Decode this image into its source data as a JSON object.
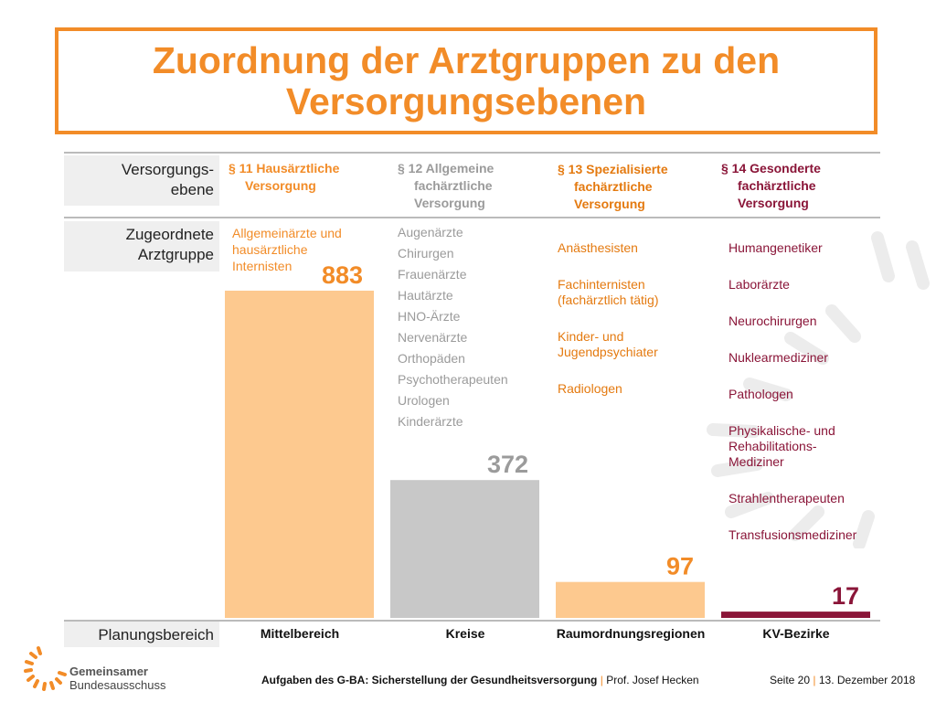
{
  "title": "Zuordnung der Arztgruppen zu den Versorgungsebenen",
  "row_labels": {
    "versorgungsebene": "Versorgungs-\nebene",
    "arztgruppe": "Zugeordnete\nArztgruppe",
    "planungsbereich": "Planungsbereich"
  },
  "columns": [
    {
      "para": "§ 11 Hausärztliche",
      "rest": "Versorgung",
      "items": [
        "Allgemeinärzte und",
        "hausärztliche",
        "Internisten"
      ],
      "category": "Mittelbereich"
    },
    {
      "para": "§ 12 Allgemeine",
      "rest": "fachärztliche\nVersorgung",
      "items": [
        "Augenärzte",
        "Chirurgen",
        "Frauenärzte",
        "Hautärzte",
        "HNO-Ärzte",
        "Nervenärzte",
        "Orthopäden",
        "Psychotherapeuten",
        "Urologen",
        "Kinderärzte"
      ],
      "category": "Kreise"
    },
    {
      "para": "§ 13 Spezialisierte",
      "rest": "fachärztliche\nVersorgung",
      "items": [
        "Anästhesisten",
        "Fachinternisten\n(fachärztlich tätig)",
        "Kinder- und\nJugendpsychiater",
        "Radiologen"
      ],
      "category": "Raumordnungsregionen"
    },
    {
      "para": "§ 14 Gesonderte",
      "rest": "fachärztliche\nVersorgung",
      "items": [
        "Humangenetiker",
        "Laborärzte",
        "Neurochirurgen",
        "Nuklearmediziner",
        "Pathologen",
        "Physikalische- und\nRehabilitations-\nMediziner",
        "Strahlentherapeuten",
        "Transfusionsmediziner"
      ],
      "category": "KV-Bezirke"
    }
  ],
  "chart_data": {
    "type": "bar",
    "categories": [
      "Mittelbereich",
      "Kreise",
      "Raumordnungsregionen",
      "KV-Bezirke"
    ],
    "values": [
      883,
      372,
      97,
      17
    ],
    "value_labels": [
      "883",
      "372",
      "97",
      "17"
    ],
    "colors": [
      "#fdc98f",
      "#c8c8c8",
      "#fdc98f",
      "#8a1538"
    ],
    "label_colors": [
      "#f28c28",
      "#9b9b9b",
      "#f28c28",
      "#8a1538"
    ],
    "ylim": [
      0,
      883
    ],
    "grid": false
  },
  "logo": {
    "line1": "Gemeinsamer",
    "line2": "Bundesausschuss"
  },
  "footer": {
    "topic": "Aufgaben des G-BA: Sicherstellung der Gesundheitsversorgung",
    "separator": "|",
    "author": "Prof. Josef Hecken",
    "page": "Seite 20",
    "date": "13. Dezember 2018"
  },
  "colors": {
    "accent_orange": "#f28c28",
    "light_orange": "#fdc98f",
    "grey": "#c8c8c8",
    "maroon": "#8a1538"
  }
}
